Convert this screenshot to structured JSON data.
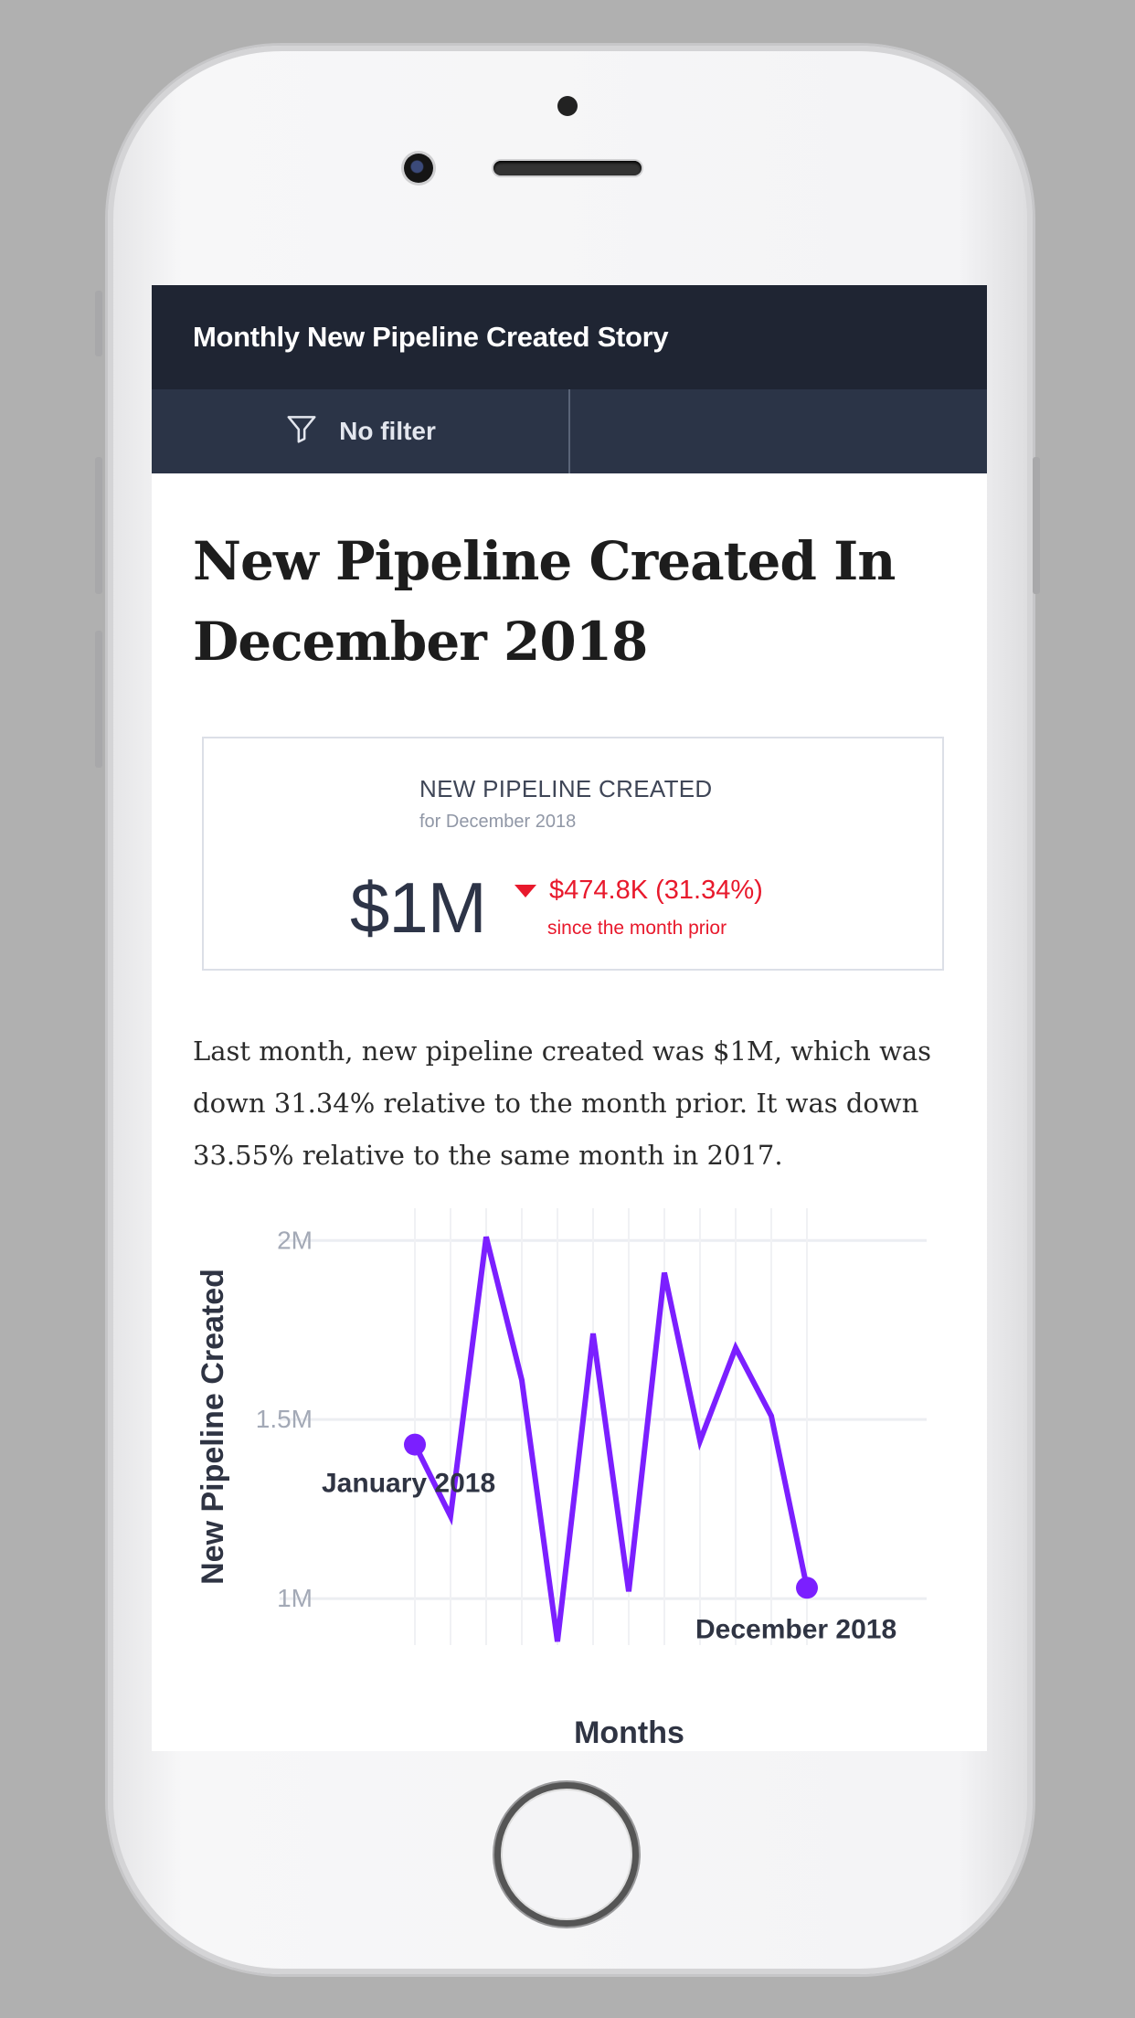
{
  "header": {
    "title": "Monthly New Pipeline Created Story"
  },
  "filter": {
    "label": "No filter",
    "icon": "funnel-icon"
  },
  "story": {
    "headline": "New Pipeline Created In December 2018",
    "narrative": "Last month, new pipeline created was $1M, which was down 31.34% relative to the month prior. It was down 33.55% relative to the same month in 2017."
  },
  "kpi": {
    "title": "NEW PIPELINE CREATED",
    "subtitle": "for December 2018",
    "value": "$1M",
    "delta": "$474.8K (31.34%)",
    "delta_note": "since the month prior",
    "delta_color": "#e8192c",
    "trend": "down"
  },
  "chart_data": {
    "type": "line",
    "ylabel": "New Pipeline Created",
    "xlabel": "Months",
    "yticks": [
      "2M",
      "1.5M",
      "1M"
    ],
    "ytick_values": [
      2000000,
      1500000,
      1000000
    ],
    "ylim": [
      870000,
      2090000
    ],
    "grid": true,
    "series": [
      {
        "color": "#7b1fff",
        "values": [
          1430000,
          1230000,
          2010000,
          1610000,
          880000,
          1740000,
          1020000,
          1910000,
          1440000,
          1700000,
          1510000,
          1030000
        ]
      }
    ],
    "annotations": [
      {
        "text": "January 2018",
        "point_index": 0
      },
      {
        "text": "December 2018",
        "point_index": 11
      }
    ]
  }
}
